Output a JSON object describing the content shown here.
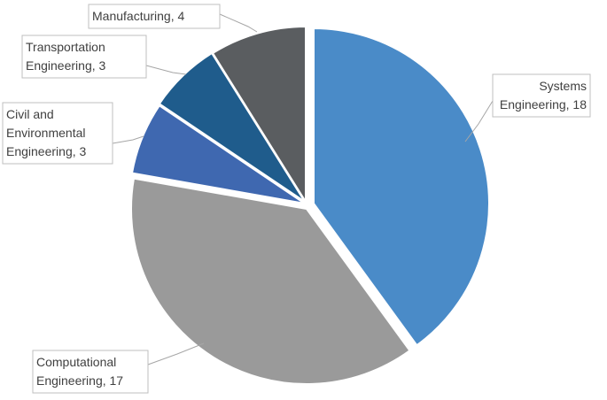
{
  "chart_data": {
    "type": "pie",
    "title": "",
    "slices": [
      {
        "label_lines": [
          "Systems",
          "Engineering, 18"
        ],
        "category": "Systems Engineering",
        "value": 18,
        "color": "#4a8bc8"
      },
      {
        "label_lines": [
          "Computational",
          "Engineering, 17"
        ],
        "category": "Computational Engineering",
        "value": 17,
        "color": "#9a9a9a"
      },
      {
        "label_lines": [
          "Civil and",
          "Environmental",
          "Engineering, 3"
        ],
        "category": "Civil and Environmental Engineering",
        "value": 3,
        "color": "#3f68b0"
      },
      {
        "label_lines": [
          "Transportation",
          "Engineering, 3"
        ],
        "category": "Transportation Engineering",
        "value": 3,
        "color": "#1f5c8c"
      },
      {
        "label_lines": [
          "Manufacturing, 4"
        ],
        "category": "Manufacturing",
        "value": 4,
        "color": "#5a5d60"
      }
    ]
  }
}
